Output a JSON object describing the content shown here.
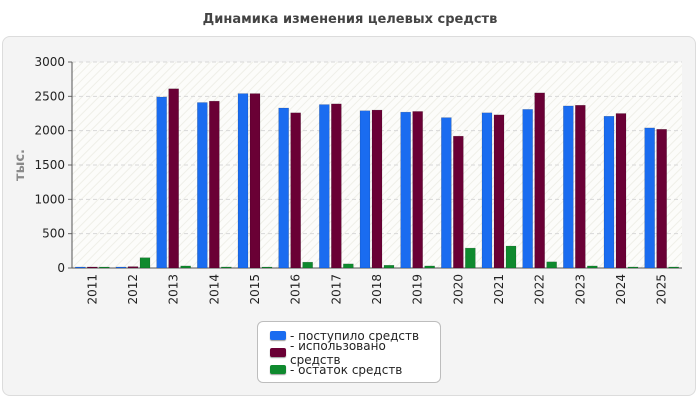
{
  "chart_data": {
    "type": "bar",
    "title": "Динамика изменения целевых средств",
    "ylabel": "тыс.",
    "xlabel": "",
    "ylim": [
      0,
      3000
    ],
    "yticks": [
      0,
      500,
      1000,
      1500,
      2000,
      2500,
      3000
    ],
    "grid": true,
    "legend_position": "bottom",
    "categories": [
      "2011",
      "2012",
      "2013",
      "2014",
      "2015",
      "2016",
      "2017",
      "2018",
      "2019",
      "2020",
      "2021",
      "2022",
      "2023",
      "2024",
      "2025"
    ],
    "series": [
      {
        "name": "- поступило средств",
        "color": "#1a6cf0",
        "values": [
          10,
          10,
          2490,
          2410,
          2540,
          2330,
          2380,
          2290,
          2270,
          2190,
          2260,
          2310,
          2360,
          2210,
          2040
        ]
      },
      {
        "name": "- использовано средств",
        "color": "#6a0035",
        "values": [
          15,
          20,
          2610,
          2430,
          2540,
          2260,
          2390,
          2300,
          2280,
          1920,
          2230,
          2550,
          2370,
          2250,
          2020
        ]
      },
      {
        "name": "- остаток средств",
        "color": "#0f8a2e",
        "values": [
          10,
          150,
          30,
          15,
          10,
          85,
          60,
          40,
          30,
          290,
          320,
          90,
          30,
          15,
          15
        ]
      }
    ]
  }
}
